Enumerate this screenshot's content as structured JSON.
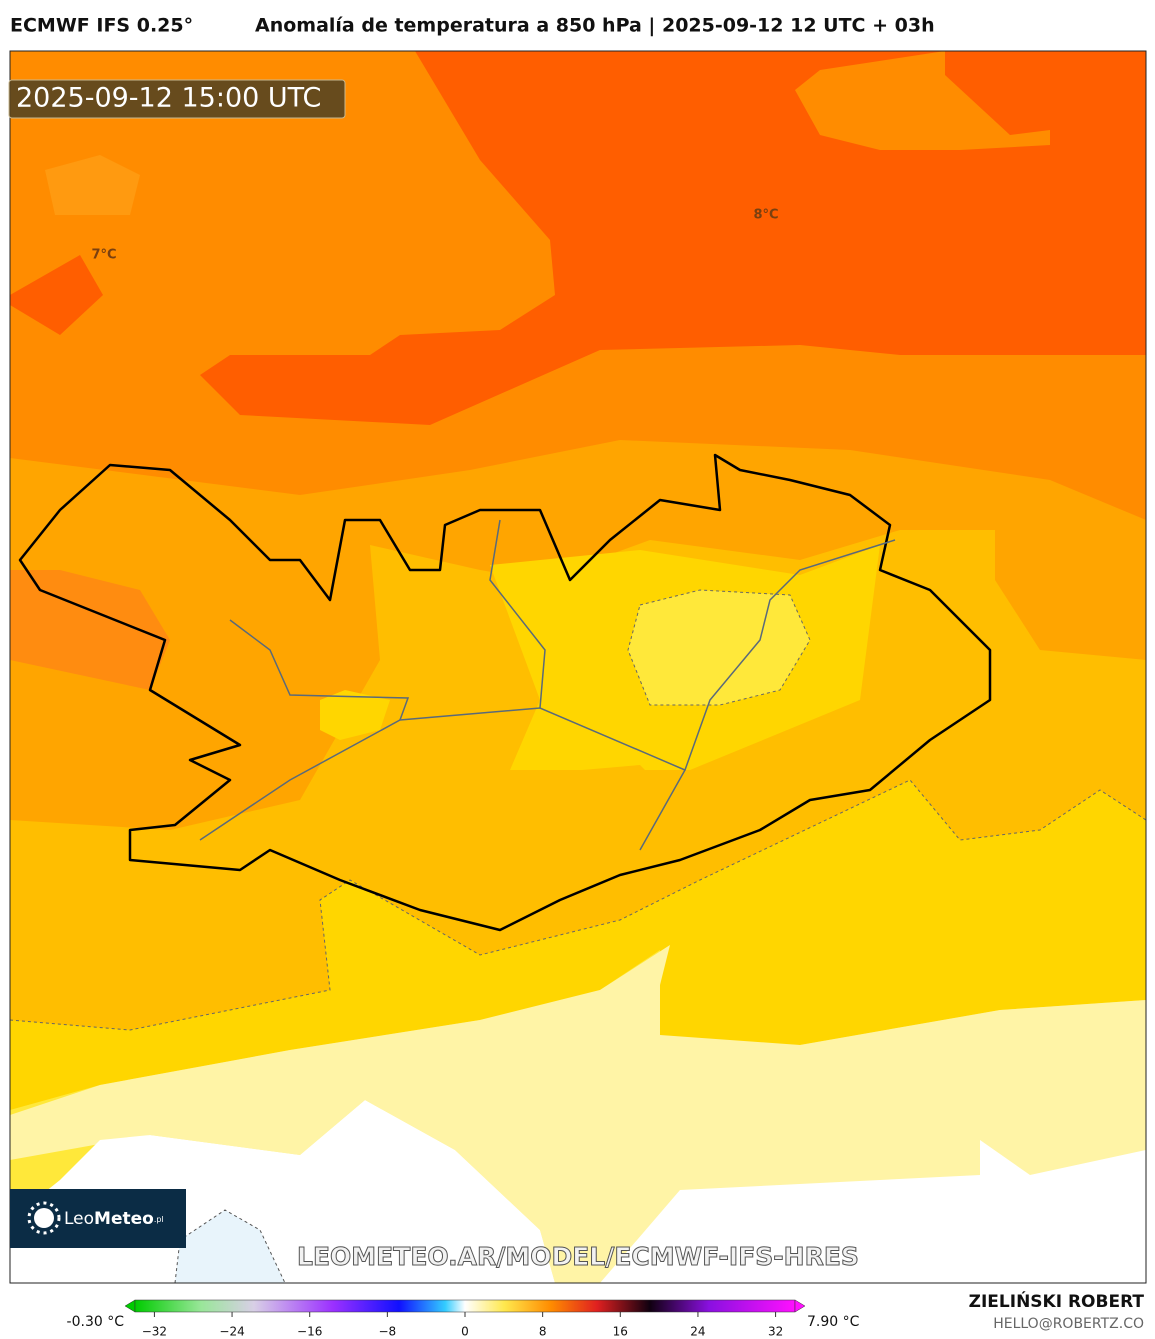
{
  "header": {
    "model": "ECMWF IFS 0.25°",
    "title": "Anomalía de temperatura a 850 hPa | 2025-09-12 12 UTC + 03h"
  },
  "map": {
    "valid_time": "2025-09-12 15:00 UTC",
    "contour_labels": [
      "7°C",
      "8°C"
    ]
  },
  "logo": {
    "name_light": "Leo",
    "name_bold": "Meteo",
    "suffix": ".pl"
  },
  "watermark": "LEOMETEO.AR/MODEL/ECMWF-IFS-HRES",
  "colorbar": {
    "min_label": "-0.30 °C",
    "max_label": "7.90 °C",
    "lim": [
      -34,
      34
    ],
    "ticks": [
      {
        "value": -32,
        "label": "−32"
      },
      {
        "value": -24,
        "label": "−24"
      },
      {
        "value": -16,
        "label": "−16"
      },
      {
        "value": -8,
        "label": "−8"
      },
      0,
      8,
      16,
      24,
      32
    ]
  },
  "credit": {
    "author": "ZIELIŃSKI ROBERT",
    "contact": "HELLO@ROBERTZ.CO"
  }
}
